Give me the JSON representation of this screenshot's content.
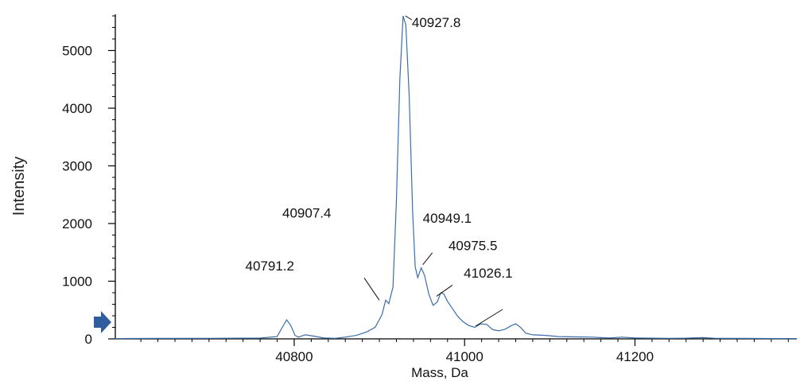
{
  "chart_data": {
    "type": "line",
    "title": "",
    "xlabel": "Mass, Da",
    "ylabel": "Intensity",
    "xlim": [
      40590,
      41390
    ],
    "ylim": [
      0,
      5600
    ],
    "x_ticks": [
      40800,
      41000,
      41200
    ],
    "y_ticks": [
      0,
      1000,
      2000,
      3000,
      4000,
      5000
    ],
    "grid": false,
    "line_color": "#3b6ea8",
    "marker_color": "#2f5d9e",
    "series": [
      {
        "values": [
          [
            40590,
            5
          ],
          [
            40640,
            8
          ],
          [
            40700,
            10
          ],
          [
            40760,
            14
          ],
          [
            40780,
            40
          ],
          [
            40786,
            200
          ],
          [
            40791.2,
            330
          ],
          [
            40796,
            230
          ],
          [
            40801,
            60
          ],
          [
            40805,
            30
          ],
          [
            40813,
            70
          ],
          [
            40822,
            50
          ],
          [
            40835,
            15
          ],
          [
            40848,
            10
          ],
          [
            40860,
            30
          ],
          [
            40873,
            60
          ],
          [
            40885,
            120
          ],
          [
            40895,
            200
          ],
          [
            40903,
            420
          ],
          [
            40907.4,
            670
          ],
          [
            40911,
            610
          ],
          [
            40916,
            900
          ],
          [
            40920,
            2400
          ],
          [
            40924,
            4500
          ],
          [
            40927.8,
            5600
          ],
          [
            40931,
            5450
          ],
          [
            40935,
            4200
          ],
          [
            40939,
            2200
          ],
          [
            40942,
            1250
          ],
          [
            40945,
            1060
          ],
          [
            40949.1,
            1230
          ],
          [
            40953,
            1100
          ],
          [
            40958,
            780
          ],
          [
            40963,
            580
          ],
          [
            40968,
            640
          ],
          [
            40972,
            800
          ],
          [
            40975.5,
            780
          ],
          [
            40980,
            650
          ],
          [
            40986,
            520
          ],
          [
            40992,
            390
          ],
          [
            40998,
            300
          ],
          [
            41005,
            230
          ],
          [
            41012,
            200
          ],
          [
            41019,
            260
          ],
          [
            41026.1,
            250
          ],
          [
            41033,
            160
          ],
          [
            41040,
            140
          ],
          [
            41048,
            170
          ],
          [
            41055,
            230
          ],
          [
            41060,
            260
          ],
          [
            41065,
            210
          ],
          [
            41072,
            100
          ],
          [
            41080,
            70
          ],
          [
            41095,
            60
          ],
          [
            41110,
            40
          ],
          [
            41130,
            35
          ],
          [
            41150,
            30
          ],
          [
            41170,
            15
          ],
          [
            41185,
            30
          ],
          [
            41200,
            15
          ],
          [
            41220,
            12
          ],
          [
            41240,
            10
          ],
          [
            41260,
            12
          ],
          [
            41280,
            22
          ],
          [
            41295,
            10
          ],
          [
            41330,
            8
          ],
          [
            41360,
            6
          ],
          [
            41390,
            5
          ]
        ]
      }
    ],
    "annotations": [
      {
        "text": "40791.2",
        "x": 40791.2
      },
      {
        "text": "40907.4",
        "x": 40907.4
      },
      {
        "text": "40927.8",
        "x": 40927.8
      },
      {
        "text": "40949.1",
        "x": 40949.1
      },
      {
        "text": "40975.5",
        "x": 40975.5
      },
      {
        "text": "41026.1",
        "x": 41026.1
      }
    ]
  }
}
